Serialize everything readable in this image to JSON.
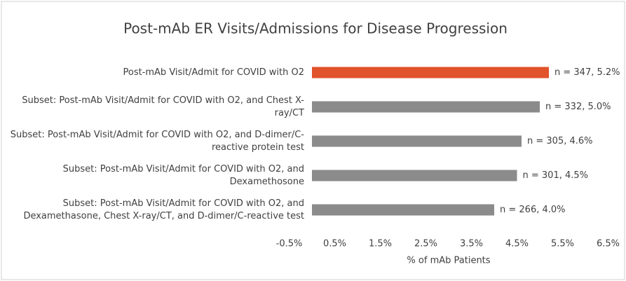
{
  "chart_data": {
    "type": "bar",
    "orientation": "horizontal",
    "title": "Post-mAb ER Visits/Admissions for Disease Progression",
    "categories": [
      "Post-mAb Visit/Admit for COVID with O2",
      "Subset: Post-mAb Visit/Admit for COVID with O2, and Chest X-ray/CT",
      "Subset: Post-mAb Visit/Admit for COVID with O2, and D-dimer/C-reactive protein test",
      "Subset: Post-mAb Visit/Admit for COVID with O2, and Dexamethosone",
      "Subset: Post-mAb Visit/Admit for COVID with O2, and Dexamethasone, Chest X-ray/CT, and D-dimer/C-reactive test"
    ],
    "values": [
      5.2,
      5.0,
      4.6,
      4.5,
      4.0
    ],
    "value_labels": [
      "n = 347, 5.2%",
      "n = 332, 5.0%",
      "n = 305, 4.6%",
      "n = 301, 4.5%",
      "n = 266, 4.0%"
    ],
    "colors": [
      "#e0532b",
      "#8b8b8b",
      "#8b8b8b",
      "#8b8b8b",
      "#8b8b8b"
    ],
    "xlabel": "% of mAb Patients",
    "xlim": [
      -0.5,
      6.5
    ],
    "xticks": [
      {
        "value": -0.5,
        "label": "-0.5%"
      },
      {
        "value": 0.5,
        "label": "0.5%"
      },
      {
        "value": 1.5,
        "label": "1.5%"
      },
      {
        "value": 2.5,
        "label": "2.5%"
      },
      {
        "value": 3.5,
        "label": "3.5%"
      },
      {
        "value": 4.5,
        "label": "4.5%"
      },
      {
        "value": 5.5,
        "label": "5.5%"
      },
      {
        "value": 6.5,
        "label": "6.5%"
      }
    ],
    "grid": false
  }
}
